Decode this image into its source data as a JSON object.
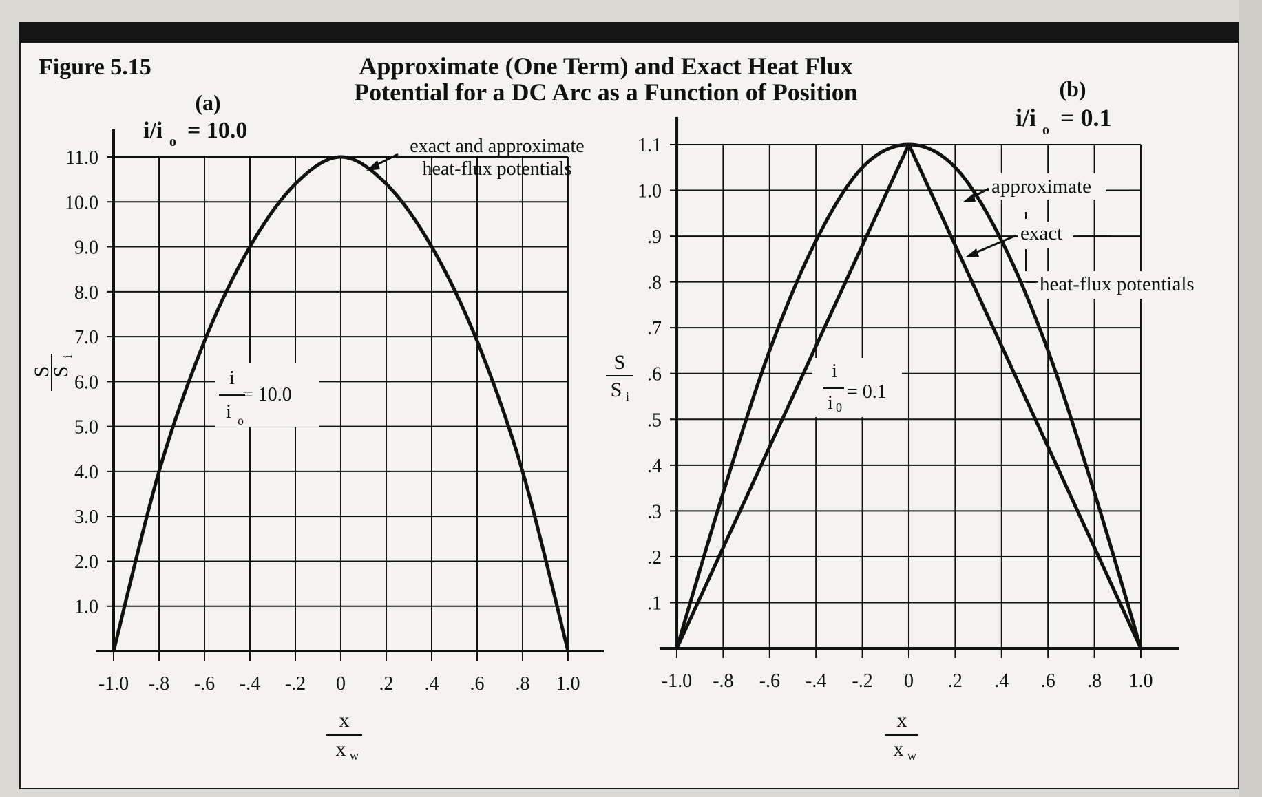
{
  "figure_label": "Figure 5.15",
  "title_line1": "Approximate (One Term) and Exact Heat Flux",
  "title_line2": "Potential for a DC Arc as a Function of Position",
  "chart_data": [
    {
      "type": "line",
      "panel_label": "(a)",
      "ratio_label": "i/i",
      "ratio_sub": "o",
      "ratio_value": "= 10.0",
      "xlabel_num": "x",
      "xlabel_den": "x",
      "xlabel_den_sub": "w",
      "ylabel_num": "S",
      "ylabel_den": "S",
      "ylabel_den_sub": "i",
      "xlim": [
        -1.0,
        1.0
      ],
      "ylim": [
        0,
        11.0
      ],
      "grid": true,
      "xticks": [
        -1.0,
        -0.8,
        -0.6,
        -0.4,
        -0.2,
        0,
        0.2,
        0.4,
        0.6,
        0.8,
        1.0
      ],
      "xtick_labels": [
        "-1.0",
        "-.8",
        "-.6",
        "-.4",
        "-.2",
        "0",
        ".2",
        ".4",
        ".6",
        ".8",
        "1.0"
      ],
      "yticks": [
        1,
        2,
        3,
        4,
        5,
        6,
        7,
        8,
        9,
        10,
        11
      ],
      "ytick_labels": [
        "1.0",
        "2.0",
        "3.0",
        "4.0",
        "5.0",
        "6.0",
        "7.0",
        "8.0",
        "9.0",
        "10.0",
        "11.0"
      ],
      "annotation_line1": "exact and approximate",
      "annotation_line2": "heat-flux potentials",
      "inline_num": "i",
      "inline_den": "i",
      "inline_den_sub": "o",
      "inline_value": "= 10.0",
      "series": [
        {
          "x": [
            -1.0,
            -0.8,
            -0.6,
            -0.4,
            -0.2,
            0.0,
            0.2,
            0.4,
            0.6,
            0.8,
            1.0
          ],
          "y": [
            0.0,
            4.0,
            6.9,
            9.0,
            10.4,
            11.0,
            10.4,
            9.0,
            6.9,
            4.0,
            0.0
          ]
        }
      ]
    },
    {
      "type": "line",
      "panel_label": "(b)",
      "ratio_label": "i/i",
      "ratio_sub": "o",
      "ratio_value": "= 0.1",
      "xlabel_num": "x",
      "xlabel_den": "x",
      "xlabel_den_sub": "w",
      "ylabel_num": "S",
      "ylabel_den": "S",
      "ylabel_den_sub": "i",
      "xlim": [
        -1.0,
        1.0
      ],
      "ylim": [
        0,
        1.1
      ],
      "grid": true,
      "xticks": [
        -1.0,
        -0.8,
        -0.6,
        -0.4,
        -0.2,
        0,
        0.2,
        0.4,
        0.6,
        0.8,
        1.0
      ],
      "xtick_labels": [
        "-1.0",
        "-.8",
        "-.6",
        "-.4",
        "-.2",
        "0",
        ".2",
        ".4",
        ".6",
        ".8",
        "1.0"
      ],
      "yticks": [
        0.1,
        0.2,
        0.3,
        0.4,
        0.5,
        0.6,
        0.7,
        0.8,
        0.9,
        1.0,
        1.1
      ],
      "ytick_labels": [
        ".1",
        ".2",
        ".3",
        ".4",
        ".5",
        ".6",
        ".7",
        ".8",
        ".9",
        "1.0",
        "1.1"
      ],
      "legend_approximate": "approximate",
      "legend_exact": "exact",
      "legend_common": "heat-flux potentials",
      "inline_num": "i",
      "inline_den": "i",
      "inline_den_sub": "0",
      "inline_value": "= 0.1",
      "series": [
        {
          "name": "approximate",
          "x": [
            -1.0,
            -0.8,
            -0.6,
            -0.4,
            -0.2,
            0.0,
            0.2,
            0.4,
            0.6,
            0.8,
            1.0
          ],
          "y": [
            0.0,
            0.34,
            0.65,
            0.89,
            1.05,
            1.1,
            1.05,
            0.89,
            0.65,
            0.34,
            0.0
          ]
        },
        {
          "name": "exact",
          "x": [
            -1.0,
            -0.8,
            -0.6,
            -0.4,
            -0.2,
            0.0,
            0.2,
            0.4,
            0.6,
            0.8,
            1.0
          ],
          "y": [
            0.0,
            0.22,
            0.44,
            0.66,
            0.88,
            1.1,
            0.88,
            0.66,
            0.44,
            0.22,
            0.0
          ]
        }
      ]
    }
  ]
}
